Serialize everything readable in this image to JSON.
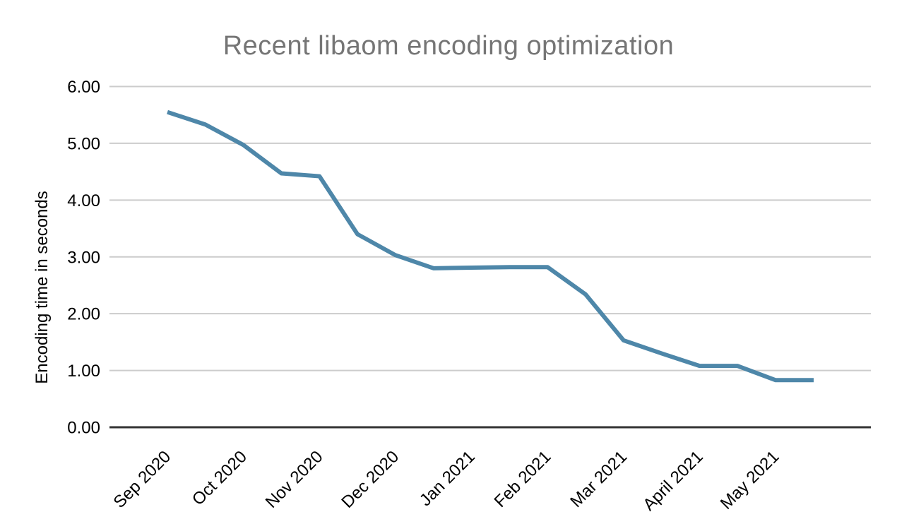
{
  "chart_data": {
    "type": "line",
    "title": "Recent libaom encoding optimization",
    "ylabel": "Encoding time in seconds",
    "xlabel": "",
    "x_tick_labels": [
      "Sep 2020",
      "Oct 2020",
      "Nov 2020",
      "Dec 2020",
      "Jan 2021",
      "Feb 2021",
      "Mar 2021",
      "April 2021",
      "May 2021"
    ],
    "x_tick_point_indices": [
      0,
      2,
      4,
      6,
      8,
      10,
      12,
      14,
      16
    ],
    "points_per_month": 2,
    "values": [
      5.55,
      5.33,
      4.97,
      4.47,
      4.42,
      3.4,
      3.03,
      2.8,
      2.81,
      2.82,
      2.82,
      2.34,
      1.53,
      1.3,
      1.08,
      1.08,
      0.83,
      0.83
    ],
    "y_tick_labels": [
      "0.00",
      "1.00",
      "2.00",
      "3.00",
      "4.00",
      "5.00",
      "6.00"
    ],
    "ylim": [
      0,
      6
    ],
    "grid": "horizontal",
    "legend": "none",
    "line_color": "#4e87a9",
    "grid_color": "#cccccc",
    "axis_line_color": "#333333",
    "title_color": "#757575",
    "tick_label_color": "#000000",
    "background_color": "#ffffff"
  }
}
